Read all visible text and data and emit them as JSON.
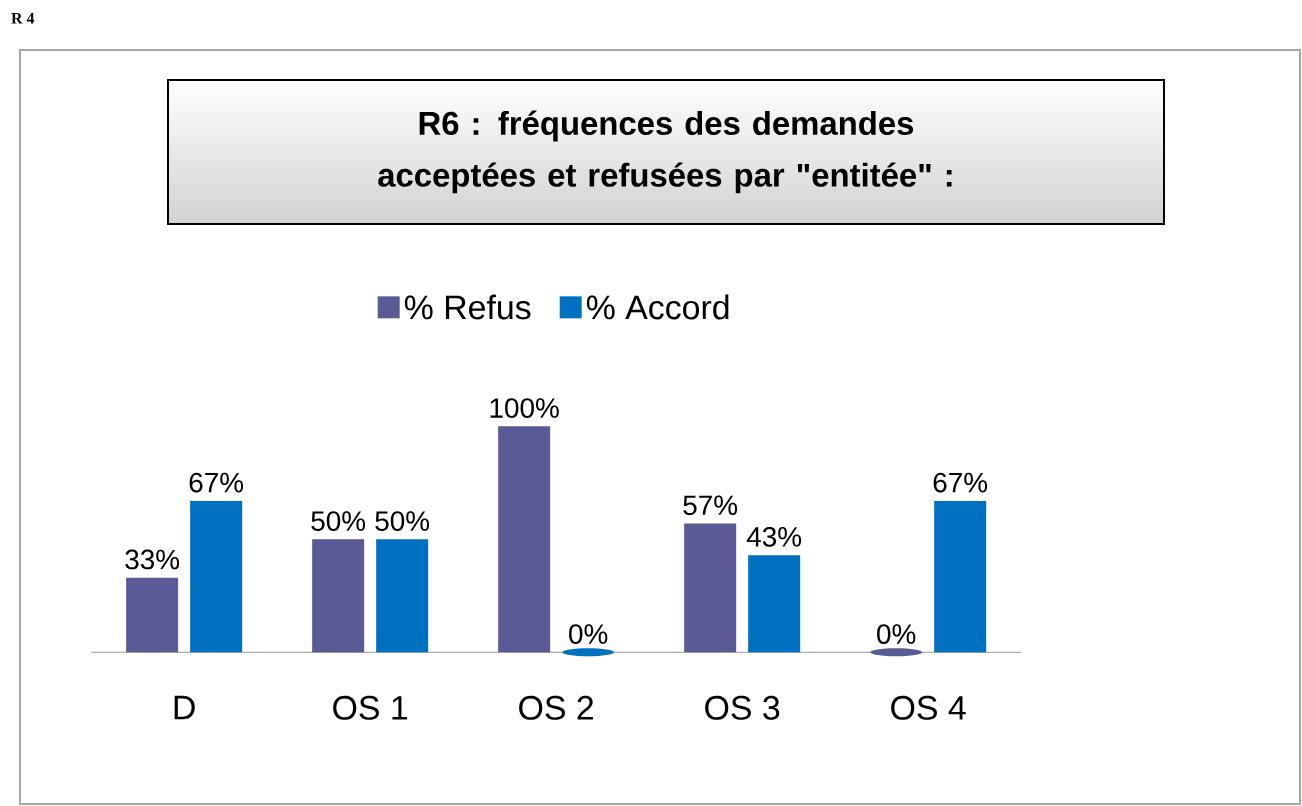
{
  "chart_data": {
    "type": "bar",
    "title": "R6 : fréquences des demandes acceptées et refusées par \"entitée\" :",
    "categories": [
      "D",
      "OS 1",
      "OS 2",
      "OS 3",
      "OS 4"
    ],
    "series": [
      {
        "name": "% Refus",
        "color": "#5a5a96",
        "values": [
          33,
          50,
          100,
          57,
          0
        ],
        "value_labels": [
          "33%",
          "50%",
          "100%",
          "57%",
          "0%"
        ]
      },
      {
        "name": "% Accord",
        "color": "#0070c0",
        "values": [
          67,
          50,
          0,
          43,
          67
        ],
        "value_labels": [
          "67%",
          "50%",
          "0%",
          "43%",
          "67%"
        ]
      }
    ],
    "legend": "top",
    "grid": false,
    "annotations": [
      "R 4"
    ]
  }
}
